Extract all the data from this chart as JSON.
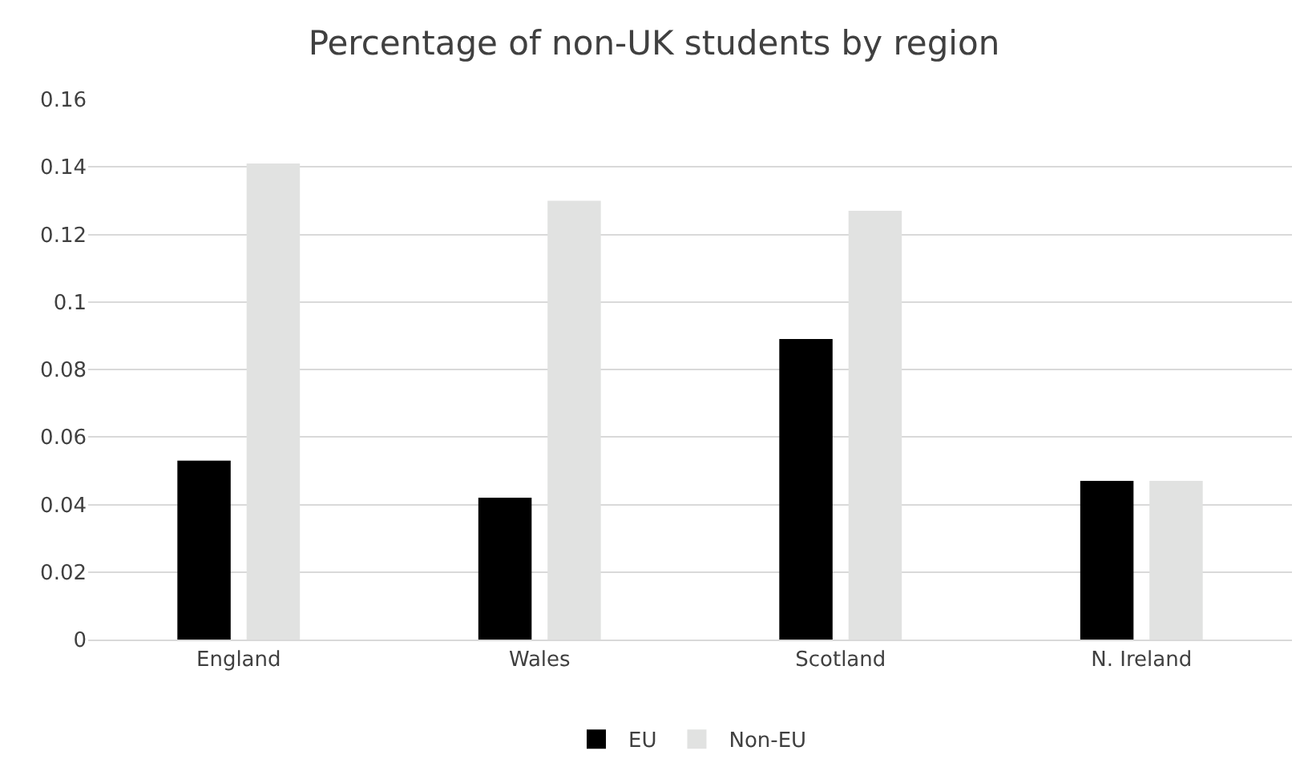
{
  "chart_data": {
    "type": "bar",
    "title": "Percentage of non-UK students by region",
    "categories": [
      "England",
      "Wales",
      "Scotland",
      "N. Ireland"
    ],
    "series": [
      {
        "name": "EU",
        "color": "#000000",
        "values": [
          0.053,
          0.042,
          0.089,
          0.047
        ]
      },
      {
        "name": "Non-EU",
        "color": "#e1e2e1",
        "values": [
          0.141,
          0.13,
          0.127,
          0.047
        ]
      }
    ],
    "ylim": [
      0,
      0.16
    ],
    "yticks": [
      0,
      0.02,
      0.04,
      0.06,
      0.08,
      {
        "value": 0.1,
        "label": "0.1"
      },
      0.12,
      0.14,
      0.16
    ],
    "grid": "y",
    "legend": "bottom"
  }
}
